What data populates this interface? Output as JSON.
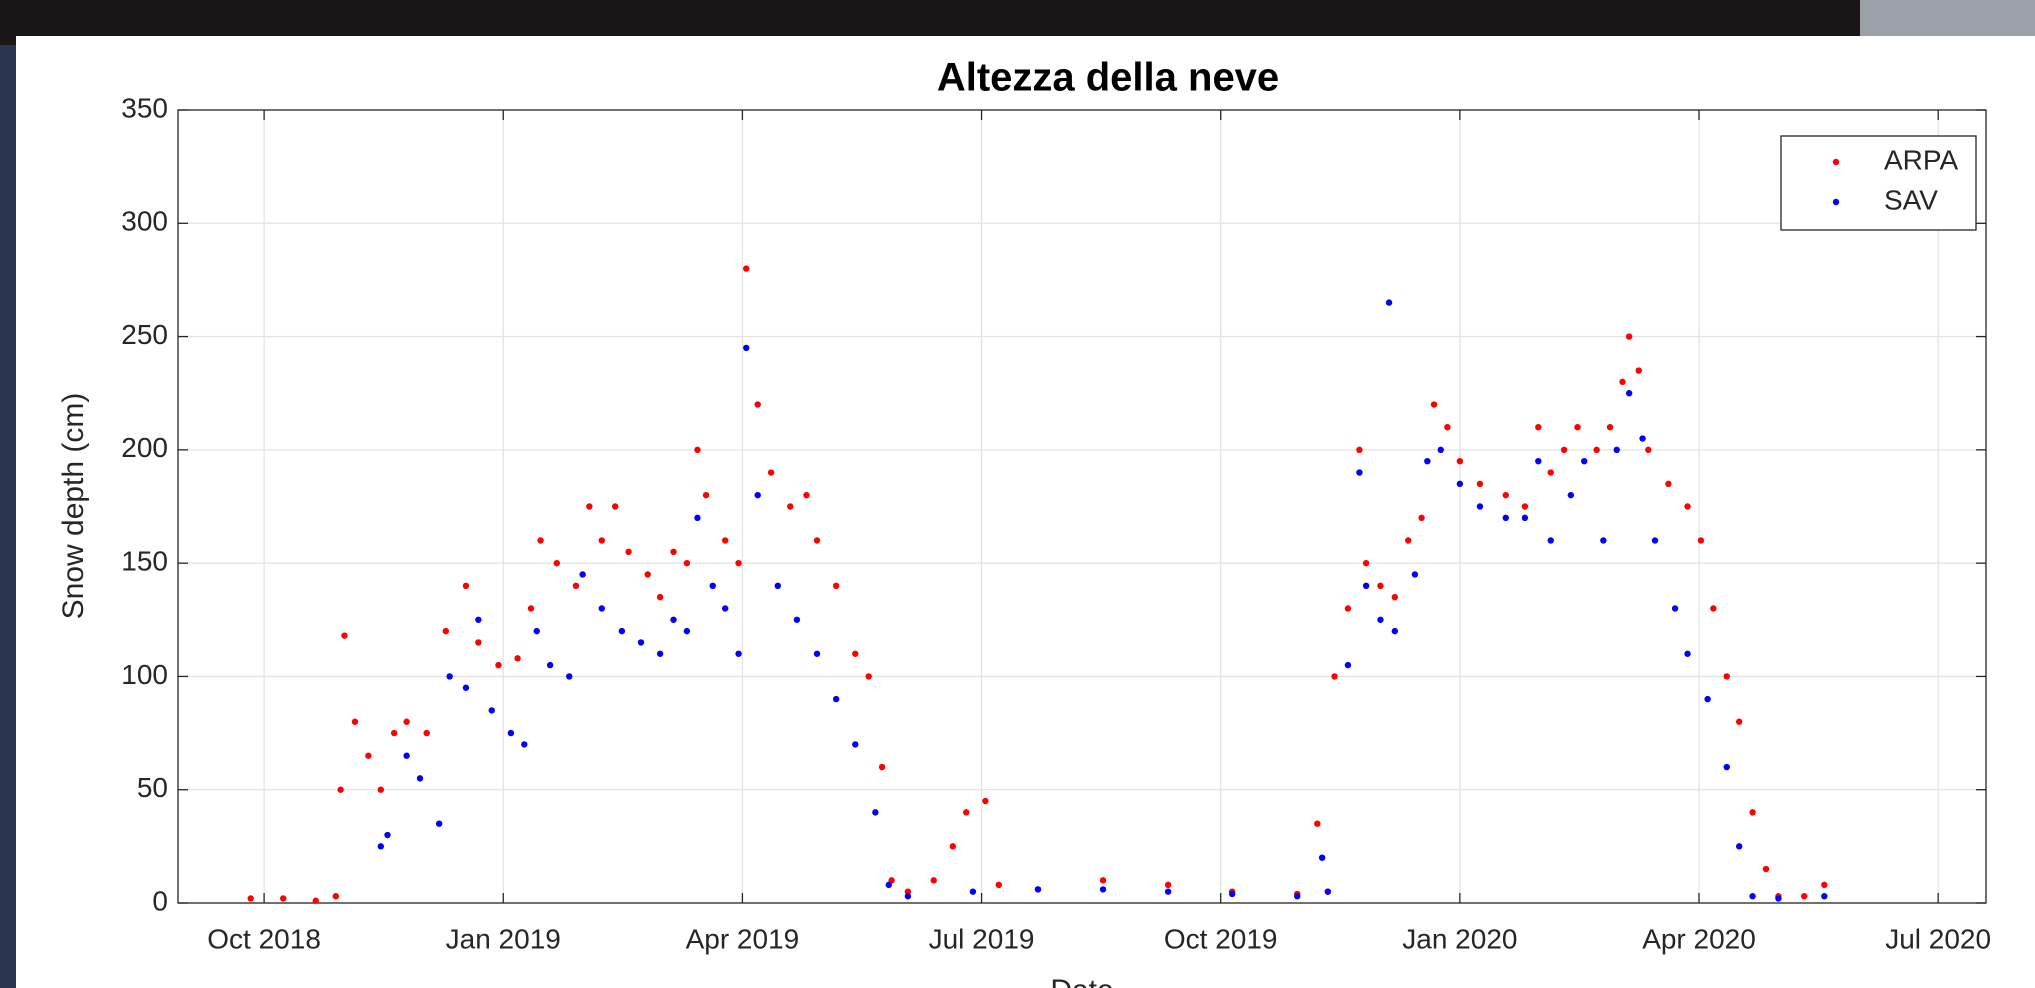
{
  "chart_data": {
    "type": "scatter",
    "title": "Altezza della neve",
    "x_label": "Date",
    "y_label": "Snow depth (cm)",
    "xlim": [
      2018.66,
      2020.55
    ],
    "ylim": [
      0,
      350
    ],
    "xticks": [
      {
        "value": 2018.75,
        "label": "Oct 2018"
      },
      {
        "value": 2019.0,
        "label": "Jan 2019"
      },
      {
        "value": 2019.25,
        "label": "Apr 2019"
      },
      {
        "value": 2019.5,
        "label": "Jul 2019"
      },
      {
        "value": 2019.75,
        "label": "Oct 2019"
      },
      {
        "value": 2020.0,
        "label": "Jan 2020"
      },
      {
        "value": 2020.25,
        "label": "Apr 2020"
      },
      {
        "value": 2020.5,
        "label": "Jul 2020"
      }
    ],
    "yticks": [
      0,
      50,
      100,
      150,
      200,
      250,
      300,
      350
    ],
    "grid": true,
    "legend": "upper right",
    "series": [
      {
        "name": "ARPA",
        "color": "#ff0000",
        "x": [
          2018.736,
          2018.77,
          2018.804,
          2018.825,
          2018.83,
          2018.834,
          2018.845,
          2018.859,
          2018.872,
          2018.886,
          2018.899,
          2018.92,
          2018.94,
          2018.961,
          2018.974,
          2018.995,
          2019.015,
          2019.029,
          2019.039,
          2019.056,
          2019.076,
          2019.09,
          2019.103,
          2019.117,
          2019.131,
          2019.151,
          2019.164,
          2019.178,
          2019.192,
          2019.203,
          2019.212,
          2019.232,
          2019.246,
          2019.254,
          2019.266,
          2019.28,
          2019.3,
          2019.317,
          2019.328,
          2019.348,
          2019.368,
          2019.382,
          2019.396,
          2019.406,
          2019.423,
          2019.45,
          2019.47,
          2019.484,
          2019.504,
          2019.518,
          2019.559,
          2019.627,
          2019.695,
          2019.762,
          2019.83,
          2019.851,
          2019.862,
          2019.869,
          2019.883,
          2019.895,
          2019.902,
          2019.917,
          2019.932,
          2019.946,
          2019.96,
          2019.973,
          2019.987,
          2020.0,
          2020.021,
          2020.048,
          2020.068,
          2020.082,
          2020.095,
          2020.109,
          2020.123,
          2020.143,
          2020.157,
          2020.17,
          2020.177,
          2020.187,
          2020.197,
          2020.218,
          2020.238,
          2020.252,
          2020.265,
          2020.279,
          2020.292,
          2020.306,
          2020.32,
          2020.333,
          2020.36,
          2020.381
        ],
        "values": [
          2,
          2,
          1,
          3,
          50,
          118,
          80,
          65,
          50,
          75,
          80,
          75,
          120,
          140,
          115,
          105,
          108,
          130,
          160,
          150,
          140,
          175,
          160,
          175,
          155,
          145,
          135,
          155,
          150,
          200,
          180,
          160,
          150,
          280,
          220,
          190,
          175,
          180,
          160,
          140,
          110,
          100,
          60,
          10,
          5,
          10,
          25,
          40,
          45,
          8,
          6,
          10,
          8,
          5,
          4,
          35,
          5,
          100,
          130,
          200,
          150,
          140,
          135,
          160,
          170,
          220,
          210,
          195,
          185,
          180,
          175,
          210,
          190,
          200,
          210,
          200,
          210,
          230,
          250,
          235,
          200,
          185,
          175,
          160,
          130,
          100,
          80,
          40,
          15,
          3,
          3,
          8
        ]
      },
      {
        "name": "SAV",
        "color": "#0000ff",
        "x": [
          2018.872,
          2018.879,
          2018.899,
          2018.913,
          2018.933,
          2018.944,
          2018.961,
          2018.974,
          2018.988,
          2019.008,
          2019.022,
          2019.035,
          2019.049,
          2019.069,
          2019.083,
          2019.103,
          2019.124,
          2019.144,
          2019.164,
          2019.178,
          2019.192,
          2019.203,
          2019.219,
          2019.232,
          2019.246,
          2019.254,
          2019.266,
          2019.287,
          2019.307,
          2019.328,
          2019.348,
          2019.368,
          2019.389,
          2019.403,
          2019.423,
          2019.491,
          2019.559,
          2019.627,
          2019.695,
          2019.762,
          2019.83,
          2019.856,
          2019.862,
          2019.883,
          2019.895,
          2019.902,
          2019.917,
          2019.926,
          2019.932,
          2019.953,
          2019.966,
          2019.98,
          2020.0,
          2020.021,
          2020.048,
          2020.068,
          2020.082,
          2020.095,
          2020.116,
          2020.13,
          2020.15,
          2020.164,
          2020.177,
          2020.191,
          2020.204,
          2020.225,
          2020.238,
          2020.259,
          2020.279,
          2020.292,
          2020.306,
          2020.333,
          2020.381
        ],
        "values": [
          25,
          30,
          65,
          55,
          35,
          100,
          95,
          125,
          85,
          75,
          70,
          120,
          105,
          100,
          145,
          130,
          120,
          115,
          110,
          125,
          120,
          170,
          140,
          130,
          110,
          245,
          180,
          140,
          125,
          110,
          90,
          70,
          40,
          8,
          3,
          5,
          6,
          6,
          5,
          4,
          3,
          20,
          5,
          105,
          190,
          140,
          125,
          265,
          120,
          145,
          195,
          200,
          185,
          175,
          170,
          170,
          195,
          160,
          180,
          195,
          160,
          200,
          225,
          205,
          160,
          130,
          110,
          90,
          60,
          25,
          3,
          2,
          3
        ]
      }
    ]
  }
}
